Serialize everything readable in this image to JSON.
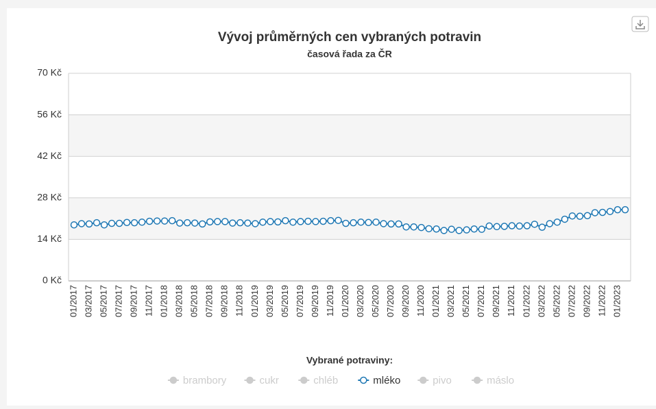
{
  "chart_data": {
    "type": "line",
    "title": "Vývoj průměrných cen vybraných potravin",
    "subtitle": "časová řada za ČR",
    "categories": [
      "01/2017",
      null,
      "03/2017",
      null,
      "05/2017",
      null,
      "07/2017",
      null,
      "09/2017",
      null,
      "11/2017",
      null,
      "01/2018",
      null,
      "03/2018",
      null,
      "05/2018",
      null,
      "07/2018",
      null,
      "09/2018",
      null,
      "11/2018",
      null,
      "01/2019",
      null,
      "03/2019",
      null,
      "05/2019",
      null,
      "07/2019",
      null,
      "09/2019",
      null,
      "11/2019",
      null,
      "01/2020",
      null,
      "03/2020",
      null,
      "05/2020",
      null,
      "07/2020",
      null,
      "09/2020",
      null,
      "11/2020",
      null,
      "01/2021",
      null,
      "03/2021",
      null,
      "05/2021",
      null,
      "07/2021",
      null,
      "09/2021",
      null,
      "11/2021",
      null,
      "01/2022",
      null,
      "03/2022",
      null,
      "05/2022",
      null,
      "07/2022",
      null,
      "09/2022",
      null,
      "11/2022",
      null,
      "01/2023",
      null
    ],
    "series": [
      {
        "name": "mléko",
        "color": "#1f78b4",
        "values": [
          18.9,
          19.3,
          19.2,
          19.6,
          18.9,
          19.4,
          19.4,
          19.7,
          19.6,
          19.8,
          20.1,
          20.2,
          20.2,
          20.3,
          19.5,
          19.6,
          19.5,
          19.2,
          19.9,
          20.0,
          20.0,
          19.5,
          19.6,
          19.5,
          19.3,
          19.8,
          20.0,
          19.9,
          20.3,
          19.8,
          20.0,
          20.1,
          20.0,
          20.1,
          20.3,
          20.4,
          19.4,
          19.6,
          19.8,
          19.7,
          19.8,
          19.3,
          19.2,
          19.2,
          18.2,
          18.2,
          18.0,
          17.6,
          17.5,
          17.0,
          17.4,
          17.0,
          17.2,
          17.5,
          17.4,
          18.5,
          18.3,
          18.4,
          18.6,
          18.5,
          18.6,
          19.1,
          18.1,
          19.3,
          19.8,
          20.8,
          21.9,
          21.8,
          22.0,
          23.0,
          23.1,
          23.4,
          24.0,
          24.0
        ]
      }
    ],
    "hidden_series": [
      "brambory",
      "cukr",
      "chléb",
      "pivo",
      "máslo"
    ],
    "legend_title": "Vybrané potraviny:",
    "ylim": [
      0,
      70
    ],
    "yticks": [
      {
        "value": 0,
        "label": "0 Kč"
      },
      {
        "value": 14,
        "label": "14 Kč"
      },
      {
        "value": 28,
        "label": "28 Kč"
      },
      {
        "value": 42,
        "label": "42 Kč"
      },
      {
        "value": 56,
        "label": "56 Kč"
      },
      {
        "value": 70,
        "label": "70 Kč"
      }
    ],
    "grid": true
  }
}
